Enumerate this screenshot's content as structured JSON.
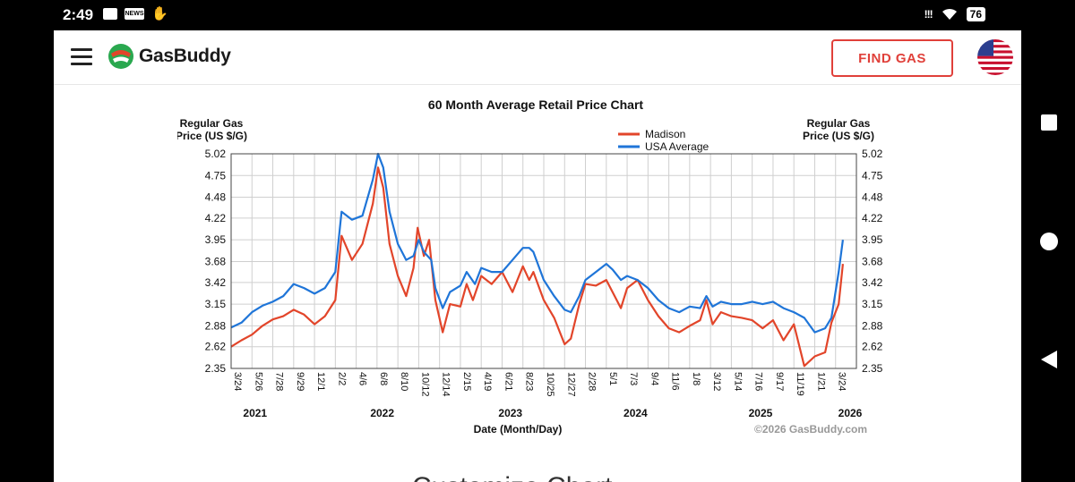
{
  "status_bar": {
    "time": "2:49",
    "battery": "76",
    "signal": "!!!",
    "news_icon_label": "NEWS",
    "icons": [
      "message-icon",
      "news-icon",
      "hand-icon",
      "signal-icon",
      "wifi-icon",
      "battery-icon"
    ]
  },
  "header": {
    "logo_text": "GasBuddy",
    "find_gas_label": "FIND GAS"
  },
  "colors": {
    "accent": "#e0403a",
    "madison": "#e2452a",
    "usa": "#1f75d8"
  },
  "bottom_heading": "Customize Chart",
  "chart_data": {
    "type": "line",
    "title": "60 Month Average Retail Price Chart",
    "ylabel_left": [
      "Regular Gas",
      "Price (US $/G)"
    ],
    "ylabel_right": [
      "Regular Gas",
      "Price (US $/G)"
    ],
    "xlabel": "Date (Month/Day)",
    "watermark": "©2026 GasBuddy.com",
    "ylim": [
      2.35,
      5.02
    ],
    "yticks": [
      "5.02",
      "4.75",
      "4.48",
      "4.22",
      "3.95",
      "3.68",
      "3.42",
      "3.15",
      "2.88",
      "2.62",
      "2.35"
    ],
    "xlim": [
      0,
      60
    ],
    "xticks": [
      {
        "x": 0,
        "label": "3/24"
      },
      {
        "x": 2,
        "label": "5/26"
      },
      {
        "x": 4,
        "label": "7/28"
      },
      {
        "x": 6,
        "label": "9/29"
      },
      {
        "x": 8,
        "label": "12/1"
      },
      {
        "x": 10,
        "label": "2/2"
      },
      {
        "x": 12,
        "label": "4/6"
      },
      {
        "x": 14,
        "label": "6/8"
      },
      {
        "x": 16,
        "label": "8/10"
      },
      {
        "x": 18,
        "label": "10/12"
      },
      {
        "x": 20,
        "label": "12/14"
      },
      {
        "x": 22,
        "label": "2/15"
      },
      {
        "x": 24,
        "label": "4/19"
      },
      {
        "x": 26,
        "label": "6/21"
      },
      {
        "x": 28,
        "label": "8/23"
      },
      {
        "x": 30,
        "label": "10/25"
      },
      {
        "x": 32,
        "label": "12/27"
      },
      {
        "x": 34,
        "label": "2/28"
      },
      {
        "x": 36,
        "label": "5/1"
      },
      {
        "x": 38,
        "label": "7/3"
      },
      {
        "x": 40,
        "label": "9/4"
      },
      {
        "x": 42,
        "label": "11/6"
      },
      {
        "x": 44,
        "label": "1/8"
      },
      {
        "x": 46,
        "label": "3/12"
      },
      {
        "x": 48,
        "label": "5/14"
      },
      {
        "x": 50,
        "label": "7/16"
      },
      {
        "x": 52,
        "label": "9/17"
      },
      {
        "x": 54,
        "label": "11/19"
      },
      {
        "x": 56,
        "label": "1/21"
      },
      {
        "x": 58,
        "label": "3/24"
      }
    ],
    "years": [
      {
        "x": 2.3,
        "label": "2021"
      },
      {
        "x": 14.5,
        "label": "2022"
      },
      {
        "x": 26.8,
        "label": "2023"
      },
      {
        "x": 38.8,
        "label": "2024"
      },
      {
        "x": 50.8,
        "label": "2025"
      },
      {
        "x": 59.4,
        "label": "2026"
      }
    ],
    "legend_position": "top-right",
    "series": [
      {
        "name": "Madison",
        "color": "#e2452a",
        "points": [
          [
            0,
            2.62
          ],
          [
            1,
            2.7
          ],
          [
            2,
            2.77
          ],
          [
            3,
            2.88
          ],
          [
            4,
            2.96
          ],
          [
            5,
            3.0
          ],
          [
            6,
            3.08
          ],
          [
            7,
            3.02
          ],
          [
            8,
            2.9
          ],
          [
            9,
            3.0
          ],
          [
            10,
            3.2
          ],
          [
            10.6,
            4.0
          ],
          [
            11.6,
            3.7
          ],
          [
            12.6,
            3.9
          ],
          [
            13.6,
            4.4
          ],
          [
            14.1,
            4.85
          ],
          [
            14.6,
            4.6
          ],
          [
            15.2,
            3.9
          ],
          [
            16,
            3.5
          ],
          [
            16.8,
            3.25
          ],
          [
            17.5,
            3.6
          ],
          [
            17.9,
            4.1
          ],
          [
            18.5,
            3.75
          ],
          [
            19,
            3.95
          ],
          [
            19.6,
            3.2
          ],
          [
            20.3,
            2.8
          ],
          [
            21,
            3.15
          ],
          [
            22,
            3.12
          ],
          [
            22.6,
            3.4
          ],
          [
            23.2,
            3.2
          ],
          [
            24,
            3.5
          ],
          [
            25,
            3.4
          ],
          [
            26,
            3.55
          ],
          [
            27,
            3.3
          ],
          [
            28,
            3.62
          ],
          [
            28.6,
            3.45
          ],
          [
            29,
            3.55
          ],
          [
            30,
            3.2
          ],
          [
            31,
            2.98
          ],
          [
            32,
            2.65
          ],
          [
            32.6,
            2.72
          ],
          [
            33.4,
            3.15
          ],
          [
            34,
            3.4
          ],
          [
            35,
            3.38
          ],
          [
            36,
            3.45
          ],
          [
            36.6,
            3.3
          ],
          [
            37.4,
            3.1
          ],
          [
            38,
            3.35
          ],
          [
            39,
            3.45
          ],
          [
            40,
            3.2
          ],
          [
            41,
            3.0
          ],
          [
            42,
            2.85
          ],
          [
            43,
            2.8
          ],
          [
            44,
            2.88
          ],
          [
            45,
            2.95
          ],
          [
            45.6,
            3.2
          ],
          [
            46.2,
            2.9
          ],
          [
            47,
            3.05
          ],
          [
            48,
            3.0
          ],
          [
            49,
            2.98
          ],
          [
            50,
            2.95
          ],
          [
            51,
            2.85
          ],
          [
            52,
            2.95
          ],
          [
            53,
            2.7
          ],
          [
            54,
            2.9
          ],
          [
            55,
            2.38
          ],
          [
            56,
            2.5
          ],
          [
            57,
            2.55
          ],
          [
            57.6,
            2.92
          ],
          [
            58.3,
            3.15
          ],
          [
            58.7,
            3.65
          ]
        ]
      },
      {
        "name": "USA Average",
        "color": "#1f75d8",
        "points": [
          [
            0,
            2.86
          ],
          [
            1,
            2.92
          ],
          [
            2,
            3.05
          ],
          [
            3,
            3.13
          ],
          [
            4,
            3.18
          ],
          [
            5,
            3.25
          ],
          [
            6,
            3.4
          ],
          [
            7,
            3.35
          ],
          [
            8,
            3.28
          ],
          [
            9,
            3.35
          ],
          [
            10,
            3.55
          ],
          [
            10.6,
            4.3
          ],
          [
            11.6,
            4.2
          ],
          [
            12.6,
            4.25
          ],
          [
            13.6,
            4.7
          ],
          [
            14.1,
            5.02
          ],
          [
            14.6,
            4.85
          ],
          [
            15.2,
            4.3
          ],
          [
            16,
            3.9
          ],
          [
            16.8,
            3.7
          ],
          [
            17.5,
            3.75
          ],
          [
            18,
            3.95
          ],
          [
            18.5,
            3.8
          ],
          [
            19.2,
            3.7
          ],
          [
            19.6,
            3.35
          ],
          [
            20.3,
            3.1
          ],
          [
            21,
            3.3
          ],
          [
            22,
            3.38
          ],
          [
            22.6,
            3.55
          ],
          [
            23.4,
            3.4
          ],
          [
            24,
            3.6
          ],
          [
            25,
            3.55
          ],
          [
            26,
            3.55
          ],
          [
            27,
            3.7
          ],
          [
            28,
            3.85
          ],
          [
            28.6,
            3.85
          ],
          [
            29,
            3.8
          ],
          [
            30,
            3.45
          ],
          [
            31,
            3.25
          ],
          [
            32,
            3.08
          ],
          [
            32.6,
            3.05
          ],
          [
            33.4,
            3.25
          ],
          [
            34,
            3.45
          ],
          [
            35,
            3.55
          ],
          [
            36,
            3.65
          ],
          [
            36.6,
            3.58
          ],
          [
            37.4,
            3.45
          ],
          [
            38,
            3.5
          ],
          [
            39,
            3.45
          ],
          [
            40,
            3.35
          ],
          [
            41,
            3.2
          ],
          [
            42,
            3.1
          ],
          [
            43,
            3.05
          ],
          [
            44,
            3.12
          ],
          [
            45,
            3.1
          ],
          [
            45.6,
            3.25
          ],
          [
            46.2,
            3.12
          ],
          [
            47,
            3.18
          ],
          [
            48,
            3.15
          ],
          [
            49,
            3.15
          ],
          [
            50,
            3.18
          ],
          [
            51,
            3.15
          ],
          [
            52,
            3.18
          ],
          [
            53,
            3.1
          ],
          [
            54,
            3.05
          ],
          [
            55,
            2.98
          ],
          [
            56,
            2.8
          ],
          [
            57,
            2.85
          ],
          [
            57.6,
            2.98
          ],
          [
            58.3,
            3.55
          ],
          [
            58.7,
            3.95
          ]
        ]
      }
    ]
  }
}
